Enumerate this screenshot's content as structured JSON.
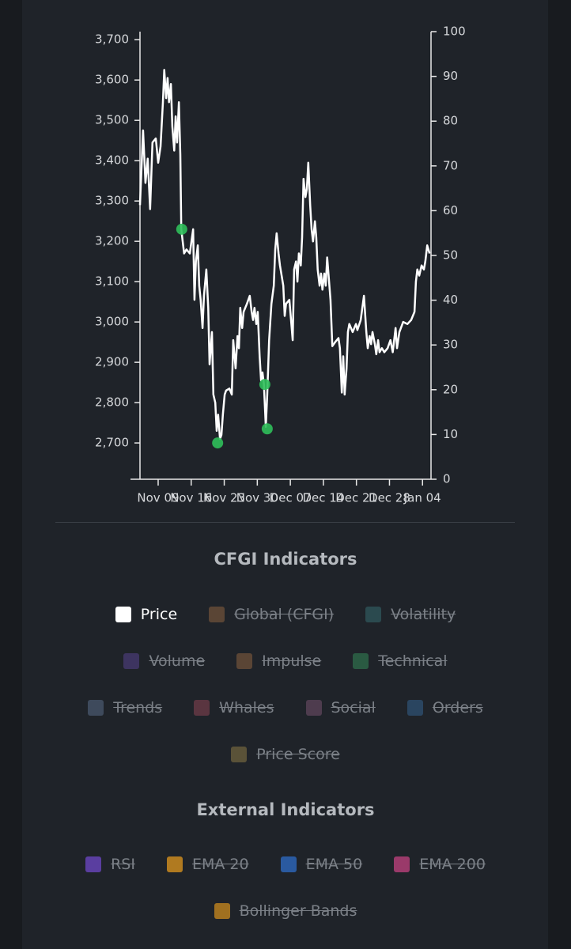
{
  "chart_data": {
    "type": "line",
    "x": [
      5.15,
      5.8,
      6.3,
      6.8,
      7.3,
      7.8,
      8.5,
      9.0,
      9.5,
      10.0,
      10.3,
      10.7,
      11.0,
      11.3,
      11.7,
      12.0,
      12.4,
      12.7,
      13.0,
      13.4,
      13.7,
      13.9,
      14.2,
      14.5,
      15.0,
      15.7,
      16.4,
      16.7,
      17.0,
      17.4,
      17.7,
      18.0,
      18.4,
      18.7,
      19.2,
      19.6,
      19.9,
      20.4,
      20.7,
      21.1,
      21.4,
      21.7,
      22.1,
      22.4,
      22.7,
      23.1,
      23.4,
      24.1,
      24.6,
      24.9,
      25.4,
      25.8,
      26.1,
      26.4,
      26.8,
      27.1,
      27.8,
      28.4,
      28.8,
      29.1,
      29.4,
      29.8,
      30.1,
      30.5,
      30.8,
      31.1,
      31.4,
      31.8,
      32.1,
      32.5,
      33.0,
      33.5,
      33.8,
      34.1,
      34.5,
      34.8,
      35.5,
      35.8,
      36.1,
      36.8,
      37.5,
      37.8,
      38.2,
      38.5,
      38.8,
      39.2,
      39.5,
      39.8,
      40.2,
      40.5,
      40.8,
      41.2,
      41.5,
      41.8,
      42.2,
      42.5,
      42.8,
      43.2,
      43.5,
      43.8,
      44.2,
      44.5,
      44.8,
      45.2,
      45.5,
      45.9,
      46.5,
      47.2,
      47.5,
      47.9,
      48.2,
      48.5,
      48.9,
      49.2,
      49.5,
      50.2,
      50.9,
      51.2,
      51.9,
      52.6,
      53.1,
      53.4,
      53.8,
      54.1,
      54.4,
      54.9,
      55.2,
      55.6,
      55.9,
      56.4,
      56.9,
      57.6,
      58.2,
      58.7,
      59.3,
      59.6,
      60.1,
      60.9,
      61.8,
      62.6,
      63.3,
      63.6,
      63.9,
      64.3,
      64.8,
      65.3,
      65.6,
      66.0,
      66.5
    ],
    "series": [
      {
        "color": "#ffffff",
        "values": [
          3290,
          3475,
          3345,
          3405,
          3280,
          3445,
          3455,
          3395,
          3435,
          3545,
          3625,
          3555,
          3605,
          3545,
          3590,
          3485,
          3425,
          3510,
          3445,
          3545,
          3415,
          3230,
          3200,
          3170,
          3180,
          3170,
          3230,
          3055,
          3150,
          3190,
          3090,
          3055,
          2985,
          3065,
          3130,
          3035,
          2895,
          2975,
          2820,
          2800,
          2730,
          2770,
          2710,
          2720,
          2770,
          2820,
          2830,
          2835,
          2820,
          2955,
          2885,
          2965,
          2935,
          3035,
          2985,
          3025,
          3045,
          3065,
          3025,
          3005,
          3035,
          2995,
          3025,
          2915,
          2855,
          2875,
          2845,
          2740,
          2820,
          2955,
          3045,
          3090,
          3180,
          3220,
          3170,
          3140,
          3090,
          3015,
          3045,
          3055,
          2955,
          3130,
          3150,
          3100,
          3170,
          3140,
          3210,
          3355,
          3310,
          3330,
          3395,
          3290,
          3230,
          3200,
          3250,
          3210,
          3130,
          3090,
          3120,
          3080,
          3120,
          3090,
          3160,
          3100,
          3055,
          2940,
          2950,
          2960,
          2935,
          2825,
          2915,
          2820,
          2885,
          2975,
          2995,
          2975,
          2995,
          2980,
          3005,
          3065,
          2975,
          2935,
          2965,
          2945,
          2975,
          2945,
          2920,
          2955,
          2925,
          2935,
          2925,
          2935,
          2955,
          2925,
          2985,
          2935,
          2975,
          3000,
          2995,
          3005,
          3025,
          3100,
          3130,
          3115,
          3140,
          3130,
          3150,
          3190,
          3170
        ]
      }
    ],
    "points": {
      "color": "#2fbf5a",
      "x": [
        14.0,
        21.6,
        31.6,
        32.1
      ],
      "values": [
        3230,
        2700,
        2845,
        2735
      ]
    },
    "xlim": [
      5.15,
      66.8
    ],
    "xticks": [
      {
        "value": 9,
        "label": "Nov 09"
      },
      {
        "value": 16,
        "label": "Nov 16"
      },
      {
        "value": 23,
        "label": "Nov 23"
      },
      {
        "value": 30,
        "label": "Nov 30"
      },
      {
        "value": 37,
        "label": "Dec 07"
      },
      {
        "value": 44,
        "label": "Dec 14"
      },
      {
        "value": 51,
        "label": "Dec 21"
      },
      {
        "value": 58,
        "label": "Dec 28"
      },
      {
        "value": 65,
        "label": "Jan 04"
      }
    ],
    "ylim": [
      2610,
      3720
    ],
    "yticks": [
      {
        "value": 2700,
        "label": "2,700"
      },
      {
        "value": 2800,
        "label": "2,800"
      },
      {
        "value": 2900,
        "label": "2,900"
      },
      {
        "value": 3000,
        "label": "3,000"
      },
      {
        "value": 3100,
        "label": "3,100"
      },
      {
        "value": 3200,
        "label": "3,200"
      },
      {
        "value": 3300,
        "label": "3,300"
      },
      {
        "value": 3400,
        "label": "3,400"
      },
      {
        "value": 3500,
        "label": "3,500"
      },
      {
        "value": 3600,
        "label": "3,600"
      },
      {
        "value": 3700,
        "label": "3,700"
      }
    ],
    "y2lim": [
      0,
      100
    ],
    "y2ticks": [
      0,
      10,
      20,
      30,
      40,
      50,
      60,
      70,
      80,
      90,
      100
    ]
  },
  "legend_groups": [
    {
      "title": "CFGI Indicators",
      "items": [
        {
          "label": "Price",
          "color": "#ffffff",
          "active": true
        },
        {
          "label": "Global (CFGI)",
          "color": "#5a4535",
          "active": false
        },
        {
          "label": "Volatility",
          "color": "#2b4a4f",
          "active": false
        },
        {
          "label": "Volume",
          "color": "#3d3460",
          "active": false
        },
        {
          "label": "Impulse",
          "color": "#5a4535",
          "active": false
        },
        {
          "label": "Technical",
          "color": "#2a5a42",
          "active": false
        },
        {
          "label": "Trends",
          "color": "#3e4a5c",
          "active": false
        },
        {
          "label": "Whales",
          "color": "#5a3540",
          "active": false
        },
        {
          "label": "Social",
          "color": "#4e3c4e",
          "active": false
        },
        {
          "label": "Orders",
          "color": "#2a4560",
          "active": false
        },
        {
          "label": "Price Score",
          "color": "#5a5238",
          "active": false
        }
      ]
    },
    {
      "title": "External Indicators",
      "items": [
        {
          "label": "RSI",
          "color": "#5a3ea0",
          "active": false
        },
        {
          "label": "EMA 20",
          "color": "#b07a20",
          "active": false
        },
        {
          "label": "EMA 50",
          "color": "#2a5aa0",
          "active": false
        },
        {
          "label": "EMA 200",
          "color": "#9a3a6a",
          "active": false
        },
        {
          "label": "Bollinger Bands",
          "color": "#a07020",
          "active": false
        }
      ]
    }
  ]
}
